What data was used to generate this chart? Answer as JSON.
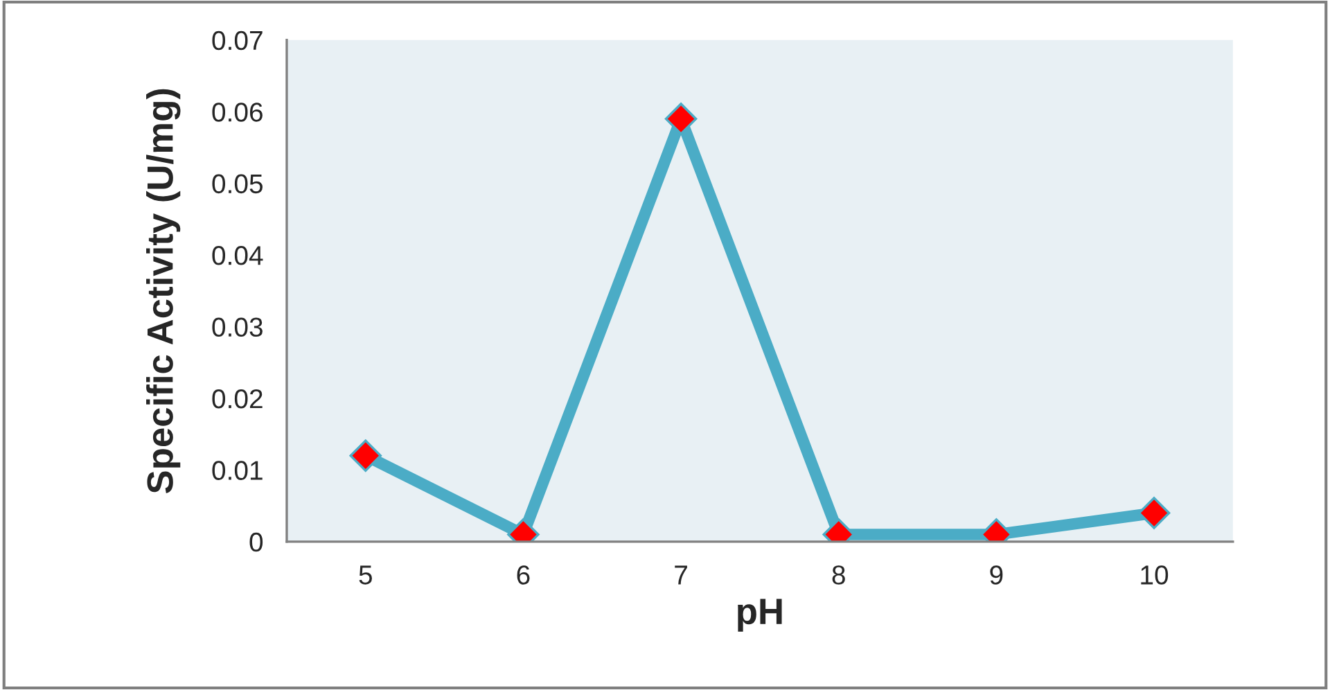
{
  "chart_data": {
    "type": "line",
    "xlabel": "pH",
    "ylabel": "Specific Activity (U/mg)",
    "categories": [
      "5",
      "6",
      "7",
      "8",
      "9",
      "10"
    ],
    "series": [
      {
        "color": "#4bacc6",
        "values": [
          0.012,
          0.001,
          0.059,
          0.001,
          0.001,
          0.004
        ]
      }
    ],
    "ylim": [
      0,
      0.07
    ],
    "yticks": [
      {
        "value": 0,
        "label": "0"
      },
      0.01,
      0.02,
      0.03,
      0.04,
      0.05,
      0.06,
      0.07
    ],
    "marker": "diamond",
    "line_style": "solid",
    "grid": false,
    "legend": false
  }
}
